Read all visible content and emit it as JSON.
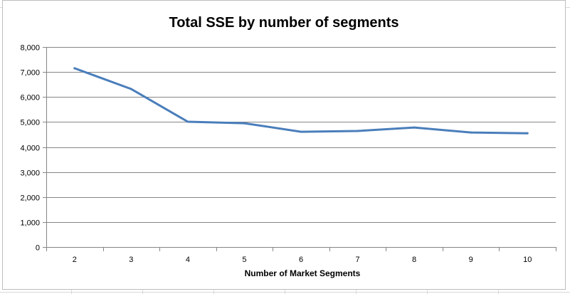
{
  "chart_data": {
    "type": "line",
    "title": "Total SSE by number of segments",
    "xlabel": "Number of Market Segments",
    "ylabel": "",
    "categories": [
      "2",
      "3",
      "4",
      "5",
      "6",
      "7",
      "8",
      "9",
      "10"
    ],
    "series": [
      {
        "values": [
          7150,
          6320,
          5010,
          4950,
          4610,
          4640,
          4780,
          4580,
          4550
        ],
        "color": "#4a7ebb"
      }
    ],
    "ylim": [
      0,
      8000
    ],
    "yticks": [
      "0",
      "1,000",
      "2,000",
      "3,000",
      "4,000",
      "5,000",
      "6,000",
      "7,000",
      "8,000"
    ],
    "grid": "horizontal",
    "legend": "none"
  }
}
